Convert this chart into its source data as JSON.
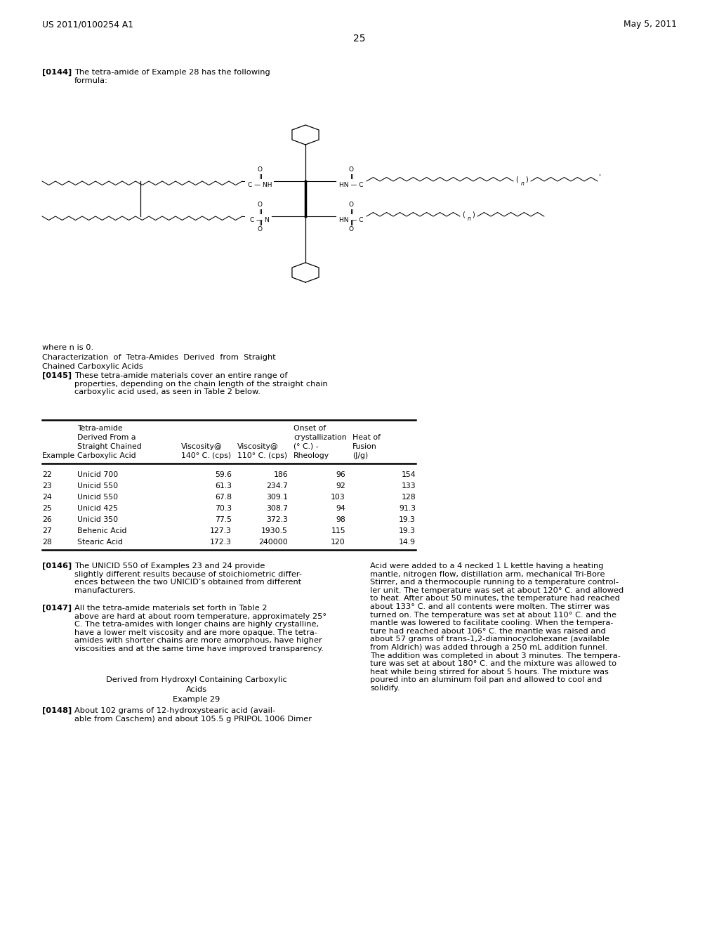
{
  "bg_color": "#ffffff",
  "header_left": "US 2011/0100254 A1",
  "header_right": "May 5, 2011",
  "page_number": "25",
  "para144_bold": "[0144]",
  "para144_text": "The tetra-amide of Example 28 has the following\nformula:",
  "where_n": "where n is 0.",
  "char_title_line1": "Characterization  of  Tetra-Amides  Derived  from  Straight",
  "char_title_line2": "Chained Carboxylic Acids",
  "para145_bold": "[0145]",
  "para145_text": "These tetra-amide materials cover an entire range of\nproperties, depending on the chain length of the straight chain\ncarboxylic acid used, as seen in Table 2 below.",
  "row_data": [
    [
      "22",
      "Unicid 700",
      "59.6",
      "186",
      "96",
      "154"
    ],
    [
      "23",
      "Unicid 550",
      "61.3",
      "234.7",
      "92",
      "133"
    ],
    [
      "24",
      "Unicid 550",
      "67.8",
      "309.1",
      "103",
      "128"
    ],
    [
      "25",
      "Unicid 425",
      "70.3",
      "308.7",
      "94",
      "91.3"
    ],
    [
      "26",
      "Unicid 350",
      "77.5",
      "372.3",
      "98",
      "19.3"
    ],
    [
      "27",
      "Behenic Acid",
      "127.3",
      "1930.5",
      "115",
      "19.3"
    ],
    [
      "28",
      "Stearic Acid",
      "172.3",
      "240000",
      "120",
      "14.9"
    ]
  ],
  "para146_bold": "[0146]",
  "para146_text": "The UNICID 550 of Examples 23 and 24 provide\nslightly different results because of stoichiometric differ-\nences between the two UNICID’s obtained from different\nmanufacturers.",
  "para147_bold": "[0147]",
  "para147_text": "All the tetra-amide materials set forth in Table 2\nabove are hard at about room temperature, approximately 25°\nC. The tetra-amides with longer chains are highly crystalline,\nhave a lower melt viscosity and are more opaque. The tetra-\namides with shorter chains are more amorphous, have higher\nviscosities and at the same time have improved transparency.",
  "derived_title": "Derived from Hydroxyl Containing Carboxylic\nAcids",
  "example29": "Example 29",
  "para148_bold": "[0148]",
  "para148_left": "About 102 grams of 12-hydroxystearic acid (avail-\nable from Caschem) and about 105.5 g PRIPOL 1006 Dimer",
  "para148_right": "Acid were added to a 4 necked 1 L kettle having a heating\nmantle, nitrogen flow, distillation arm, mechanical Tri-Bore\nStirrer, and a thermocouple running to a temperature control-\nler unit. The temperature was set at about 120° C. and allowed\nto heat. After about 50 minutes, the temperature had reached\nabout 133° C. and all contents were molten. The stirrer was\nturned on. The temperature was set at about 110° C. and the\nmantle was lowered to facilitate cooling. When the tempera-\nture had reached about 106° C. the mantle was raised and\nabout 57 grams of trans-1,2-diaminocyclohexane (available\nfrom Aldrich) was added through a 250 mL addition funnel.\nThe addition was completed in about 3 minutes. The tempera-\nture was set at about 180° C. and the mixture was allowed to\nheat while being stirred for about 5 hours. The mixture was\npoured into an aluminum foil pan and allowed to cool and\nsolidify."
}
